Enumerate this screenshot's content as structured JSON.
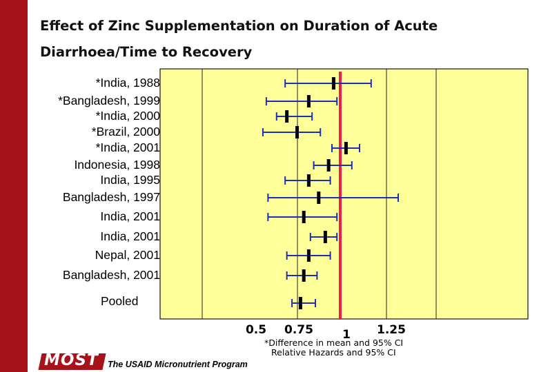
{
  "title_line1": "Effect of Zinc Supplementation on Duration of  Acute",
  "title_line2": "Diarrhoea/Time to Recovery",
  "footnote_line1": "*Difference in mean and 95% CI",
  "footnote_line2": "Relative Hazards and 95% CI",
  "logo_text": "MOST",
  "program_text": "The USAID Micronutrient Program",
  "colors": {
    "left_bar": "#a8121a",
    "plot_bg": "#ffff99",
    "ci_line": "#1a2eb8",
    "estimate": "#000000",
    "reference_line": "#e8204a"
  },
  "chart_data": {
    "type": "forest",
    "title": "Effect of Zinc Supplementation on Duration of  Acute Diarrhoea/Time to Recovery",
    "xlabel": "",
    "ylabel": "",
    "x_ticks": [
      {
        "value": 0.5,
        "label": "0.5"
      },
      {
        "value": 0.75,
        "label": "0.75"
      },
      {
        "value": 1,
        "label": "1"
      },
      {
        "value": 1.25,
        "label": "1.25"
      }
    ],
    "reference_value": 1,
    "grid": true,
    "studies": [
      {
        "label": "*India, 1988",
        "estimate": 0.96,
        "lower": 0.67,
        "upper": 1.16
      },
      {
        "label": "*Bangladesh, 1999",
        "estimate": 0.81,
        "lower": 0.56,
        "upper": 0.98
      },
      {
        "label": "*India, 2000",
        "estimate": 0.68,
        "lower": 0.62,
        "upper": 0.83
      },
      {
        "label": "*Brazil, 2000",
        "estimate": 0.74,
        "lower": 0.54,
        "upper": 0.88
      },
      {
        "label": "*India, 2001",
        "estimate": 1.03,
        "lower": 0.95,
        "upper": 1.1
      },
      {
        "label": "Indonesia, 1998",
        "estimate": 0.93,
        "lower": 0.84,
        "upper": 1.06
      },
      {
        "label": "India, 1995",
        "estimate": 0.81,
        "lower": 0.67,
        "upper": 0.94
      },
      {
        "label": "Bangladesh, 1997",
        "estimate": 0.87,
        "lower": 0.57,
        "upper": 1.3
      },
      {
        "label": "India, 2001",
        "estimate": 0.78,
        "lower": 0.57,
        "upper": 0.98
      },
      {
        "label": "India, 2001",
        "estimate": 0.91,
        "lower": 0.82,
        "upper": 0.98
      },
      {
        "label": "Nepal, 2001",
        "estimate": 0.81,
        "lower": 0.68,
        "upper": 0.94
      },
      {
        "label": "Bangladesh, 2001",
        "estimate": 0.78,
        "lower": 0.68,
        "upper": 0.86
      }
    ],
    "pooled": {
      "label": "Pooled",
      "estimate": 0.76,
      "lower": 0.71,
      "upper": 0.85
    }
  }
}
